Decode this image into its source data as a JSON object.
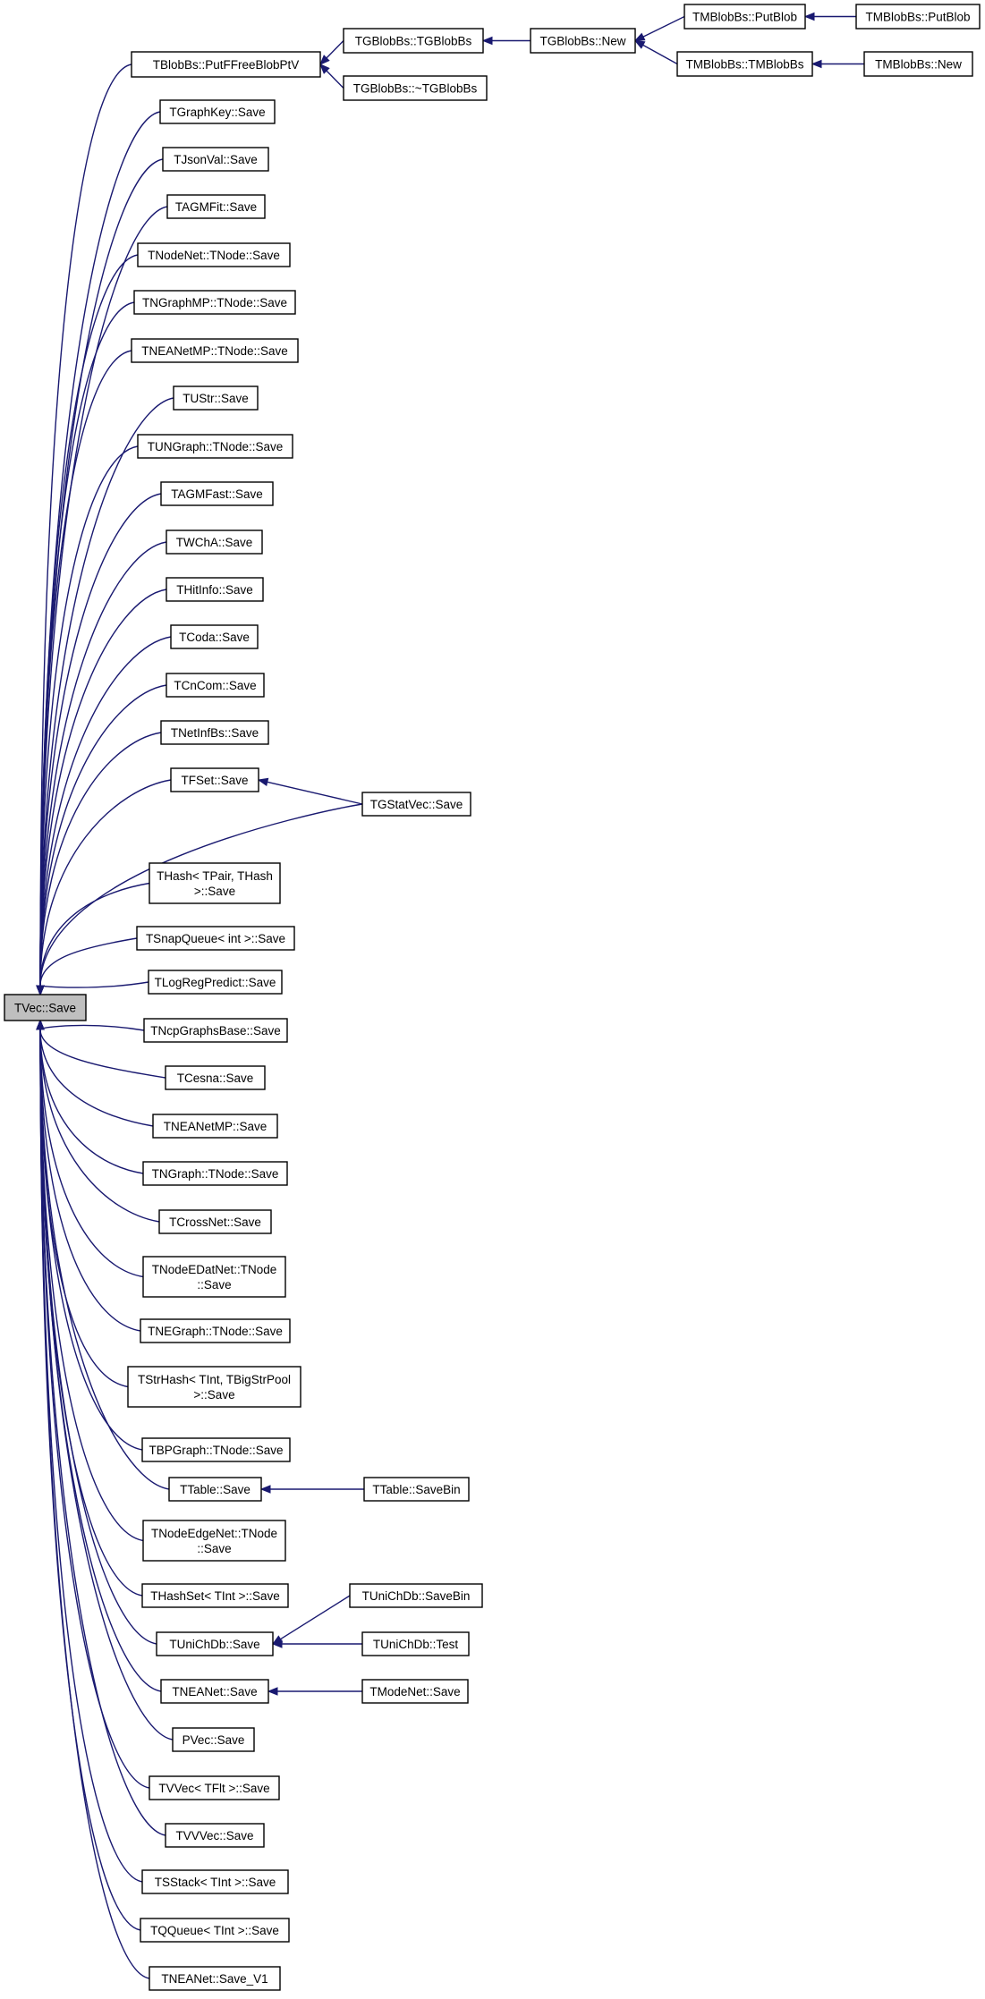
{
  "diagram": {
    "type": "caller-graph",
    "colors": {
      "edge": "#191970",
      "root_fill": "#bfbfbf",
      "node_fill": "#ffffff",
      "node_border": "#000000"
    },
    "nodes": [
      {
        "id": "root",
        "label": [
          "TVec::Save"
        ],
        "root": true
      },
      {
        "id": "putf",
        "label": [
          "TBlobBs::PutFFreeBlobPtV"
        ]
      },
      {
        "id": "tgb",
        "label": [
          "TGBlobBs::TGBlobBs"
        ]
      },
      {
        "id": "tgbnew",
        "label": [
          "TGBlobBs::New"
        ]
      },
      {
        "id": "tmbput",
        "label": [
          "TMBlobBs::PutBlob"
        ]
      },
      {
        "id": "tmbput2",
        "label": [
          "TMBlobBs::PutBlob"
        ]
      },
      {
        "id": "tmbctor",
        "label": [
          "TMBlobBs::TMBlobBs"
        ]
      },
      {
        "id": "tmbnew",
        "label": [
          "TMBlobBs::New"
        ]
      },
      {
        "id": "tgbdtor",
        "label": [
          "TGBlobBs::~TGBlobBs"
        ]
      },
      {
        "id": "graphkey",
        "label": [
          "TGraphKey::Save"
        ]
      },
      {
        "id": "jsonval",
        "label": [
          "TJsonVal::Save"
        ]
      },
      {
        "id": "agmfit",
        "label": [
          "TAGMFit::Save"
        ]
      },
      {
        "id": "nodenet",
        "label": [
          "TNodeNet::TNode::Save"
        ]
      },
      {
        "id": "ngraphmp",
        "label": [
          "TNGraphMP::TNode::Save"
        ]
      },
      {
        "id": "neanetmpnode",
        "label": [
          "TNEANetMP::TNode::Save"
        ]
      },
      {
        "id": "ustr",
        "label": [
          "TUStr::Save"
        ]
      },
      {
        "id": "ungraph",
        "label": [
          "TUNGraph::TNode::Save"
        ]
      },
      {
        "id": "agmfast",
        "label": [
          "TAGMFast::Save"
        ]
      },
      {
        "id": "wcha",
        "label": [
          "TWChA::Save"
        ]
      },
      {
        "id": "hitinfo",
        "label": [
          "THitInfo::Save"
        ]
      },
      {
        "id": "coda",
        "label": [
          "TCoda::Save"
        ]
      },
      {
        "id": "cncom",
        "label": [
          "TCnCom::Save"
        ]
      },
      {
        "id": "netinfbs",
        "label": [
          "TNetInfBs::Save"
        ]
      },
      {
        "id": "fset",
        "label": [
          "TFSet::Save"
        ]
      },
      {
        "id": "gstatvec",
        "label": [
          "TGStatVec::Save"
        ]
      },
      {
        "id": "hashpair",
        "label": [
          "THash< TPair, THash",
          ">::Save"
        ]
      },
      {
        "id": "snapqueue",
        "label": [
          "TSnapQueue< int >::Save"
        ]
      },
      {
        "id": "logreg",
        "label": [
          "TLogRegPredict::Save"
        ]
      },
      {
        "id": "ncpgraphs",
        "label": [
          "TNcpGraphsBase::Save"
        ]
      },
      {
        "id": "cesna",
        "label": [
          "TCesna::Save"
        ]
      },
      {
        "id": "neanetmp",
        "label": [
          "TNEANetMP::Save"
        ]
      },
      {
        "id": "ngraphnode",
        "label": [
          "TNGraph::TNode::Save"
        ]
      },
      {
        "id": "crossnet",
        "label": [
          "TCrossNet::Save"
        ]
      },
      {
        "id": "nodeedat",
        "label": [
          "TNodeEDatNet::TNode",
          "::Save"
        ]
      },
      {
        "id": "negraph",
        "label": [
          "TNEGraph::TNode::Save"
        ]
      },
      {
        "id": "strhash",
        "label": [
          "TStrHash< TInt, TBigStrPool",
          ">::Save"
        ]
      },
      {
        "id": "bpgraph",
        "label": [
          "TBPGraph::TNode::Save"
        ]
      },
      {
        "id": "ttable",
        "label": [
          "TTable::Save"
        ]
      },
      {
        "id": "ttablebin",
        "label": [
          "TTable::SaveBin"
        ]
      },
      {
        "id": "nodeedgenet",
        "label": [
          "TNodeEdgeNet::TNode",
          "::Save"
        ]
      },
      {
        "id": "hashset",
        "label": [
          "THashSet< TInt >::Save"
        ]
      },
      {
        "id": "unichdb",
        "label": [
          "TUniChDb::Save"
        ]
      },
      {
        "id": "unichdbbin",
        "label": [
          "TUniChDb::SaveBin"
        ]
      },
      {
        "id": "unichdbtest",
        "label": [
          "TUniChDb::Test"
        ]
      },
      {
        "id": "neanet",
        "label": [
          "TNEANet::Save"
        ]
      },
      {
        "id": "modenet",
        "label": [
          "TModeNet::Save"
        ]
      },
      {
        "id": "pvec",
        "label": [
          "PVec::Save"
        ]
      },
      {
        "id": "vvecflt",
        "label": [
          "TVVec< TFlt >::Save"
        ]
      },
      {
        "id": "vvvec",
        "label": [
          "TVVVec::Save"
        ]
      },
      {
        "id": "sstack",
        "label": [
          "TSStack< TInt >::Save"
        ]
      },
      {
        "id": "qqueue",
        "label": [
          "TQQueue< TInt >::Save"
        ]
      },
      {
        "id": "neanetv1",
        "label": [
          "TNEANet::Save_V1"
        ]
      }
    ],
    "edges": [
      {
        "from": "putf",
        "to": "root"
      },
      {
        "from": "graphkey",
        "to": "root"
      },
      {
        "from": "jsonval",
        "to": "root"
      },
      {
        "from": "agmfit",
        "to": "root"
      },
      {
        "from": "nodenet",
        "to": "root"
      },
      {
        "from": "ngraphmp",
        "to": "root"
      },
      {
        "from": "neanetmpnode",
        "to": "root"
      },
      {
        "from": "ustr",
        "to": "root"
      },
      {
        "from": "ungraph",
        "to": "root"
      },
      {
        "from": "agmfast",
        "to": "root"
      },
      {
        "from": "wcha",
        "to": "root"
      },
      {
        "from": "hitinfo",
        "to": "root"
      },
      {
        "from": "coda",
        "to": "root"
      },
      {
        "from": "cncom",
        "to": "root"
      },
      {
        "from": "netinfbs",
        "to": "root"
      },
      {
        "from": "fset",
        "to": "root"
      },
      {
        "from": "gstatvec",
        "to": "root"
      },
      {
        "from": "hashpair",
        "to": "root"
      },
      {
        "from": "snapqueue",
        "to": "root"
      },
      {
        "from": "logreg",
        "to": "root"
      },
      {
        "from": "ncpgraphs",
        "to": "root"
      },
      {
        "from": "cesna",
        "to": "root"
      },
      {
        "from": "neanetmp",
        "to": "root"
      },
      {
        "from": "ngraphnode",
        "to": "root"
      },
      {
        "from": "crossnet",
        "to": "root"
      },
      {
        "from": "nodeedat",
        "to": "root"
      },
      {
        "from": "negraph",
        "to": "root"
      },
      {
        "from": "strhash",
        "to": "root"
      },
      {
        "from": "bpgraph",
        "to": "root"
      },
      {
        "from": "ttable",
        "to": "root"
      },
      {
        "from": "nodeedgenet",
        "to": "root"
      },
      {
        "from": "hashset",
        "to": "root"
      },
      {
        "from": "unichdb",
        "to": "root"
      },
      {
        "from": "neanet",
        "to": "root"
      },
      {
        "from": "pvec",
        "to": "root"
      },
      {
        "from": "vvecflt",
        "to": "root"
      },
      {
        "from": "vvvec",
        "to": "root"
      },
      {
        "from": "sstack",
        "to": "root"
      },
      {
        "from": "qqueue",
        "to": "root"
      },
      {
        "from": "neanetv1",
        "to": "root"
      },
      {
        "from": "tgb",
        "to": "putf"
      },
      {
        "from": "tgbdtor",
        "to": "putf"
      },
      {
        "from": "tgbnew",
        "to": "tgb"
      },
      {
        "from": "tmbput",
        "to": "tgbnew"
      },
      {
        "from": "tmbctor",
        "to": "tgbnew"
      },
      {
        "from": "tmbput2",
        "to": "tmbput"
      },
      {
        "from": "tmbnew",
        "to": "tmbctor"
      },
      {
        "from": "gstatvec",
        "to": "fset"
      },
      {
        "from": "ttablebin",
        "to": "ttable"
      },
      {
        "from": "unichdbbin",
        "to": "unichdb"
      },
      {
        "from": "unichdbtest",
        "to": "unichdb"
      },
      {
        "from": "modenet",
        "to": "neanet"
      }
    ]
  }
}
